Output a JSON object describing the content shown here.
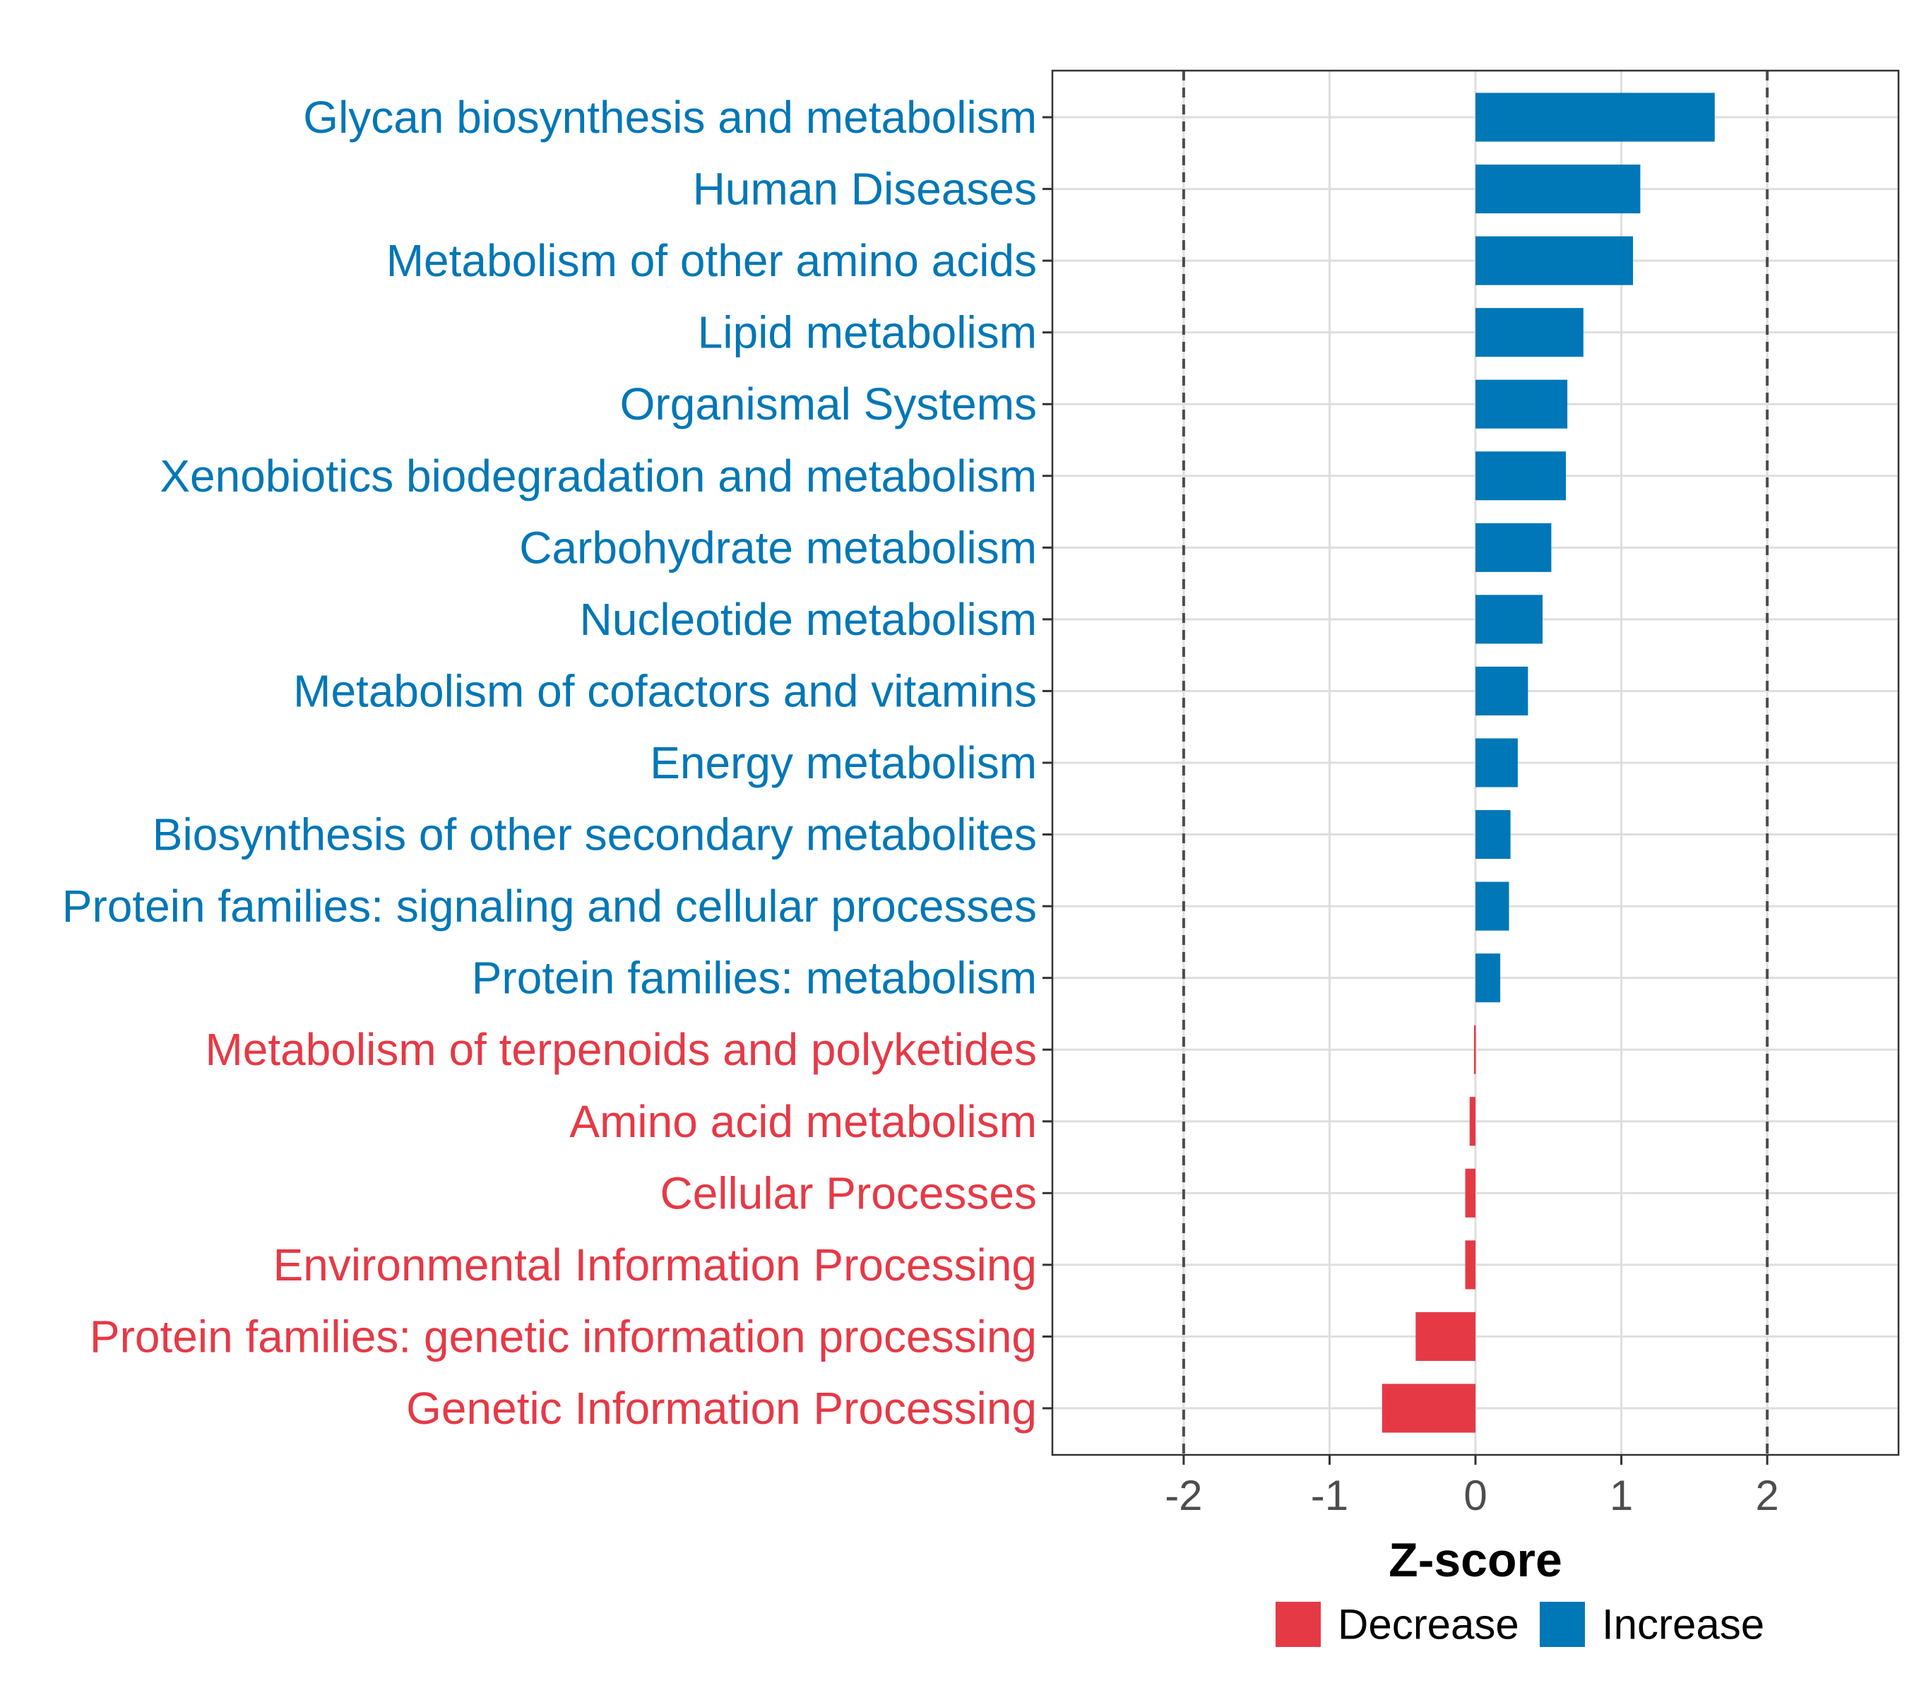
{
  "chart_data": {
    "type": "bar",
    "orientation": "horizontal",
    "categories": [
      "Glycan biosynthesis and metabolism",
      "Human Diseases",
      "Metabolism of other amino acids",
      "Lipid metabolism",
      "Organismal Systems",
      "Xenobiotics biodegradation and metabolism",
      "Carbohydrate metabolism",
      "Nucleotide metabolism",
      "Metabolism of cofactors and vitamins",
      "Energy metabolism",
      "Biosynthesis of other secondary metabolites",
      "Protein families: signaling and cellular processes",
      "Protein families: metabolism",
      "Metabolism of terpenoids and polyketides",
      "Amino acid metabolism",
      "Cellular Processes",
      "Environmental Information Processing",
      "Protein families: genetic information processing",
      "Genetic Information Processing"
    ],
    "values": [
      1.64,
      1.13,
      1.08,
      0.74,
      0.63,
      0.62,
      0.52,
      0.46,
      0.36,
      0.29,
      0.24,
      0.23,
      0.17,
      -0.01,
      -0.04,
      -0.07,
      -0.07,
      -0.41,
      -0.64
    ],
    "groups": [
      "Increase",
      "Increase",
      "Increase",
      "Increase",
      "Increase",
      "Increase",
      "Increase",
      "Increase",
      "Increase",
      "Increase",
      "Increase",
      "Increase",
      "Increase",
      "Decrease",
      "Decrease",
      "Decrease",
      "Decrease",
      "Decrease",
      "Decrease"
    ],
    "xlabel": "Z-score",
    "ylabel": "",
    "xlim": [
      -2.9,
      2.9
    ],
    "xticks": [
      -2,
      -1,
      0,
      1,
      2
    ],
    "xtick_labels": [
      "-2",
      "-1",
      "0",
      "1",
      "2"
    ],
    "reference_lines": [
      -2,
      2
    ],
    "grid": true,
    "legend": {
      "placement": "bottom",
      "items": [
        {
          "label": "Decrease",
          "color": "#E63946"
        },
        {
          "label": "Increase",
          "color": "#0077B6"
        }
      ]
    },
    "colors": {
      "Decrease": "#E63946",
      "Increase": "#0077B6"
    }
  }
}
